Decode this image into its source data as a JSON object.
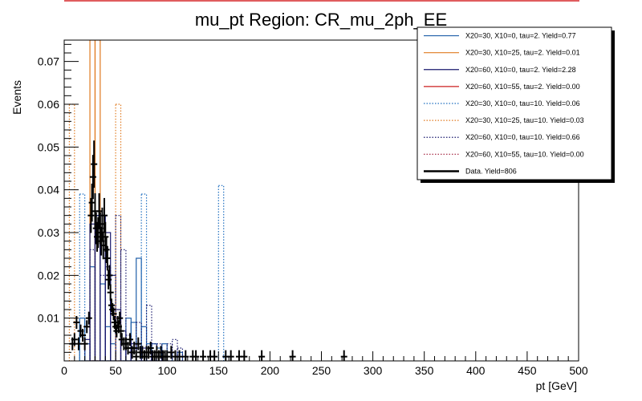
{
  "chart_data": {
    "type": "line",
    "title": "mu_pt Region: CR_mu_2ph_EE",
    "xlabel": "pt [GeV]",
    "ylabel": "Events",
    "xlim": [
      0,
      500
    ],
    "ylim": [
      0,
      0.075
    ],
    "x_ticks": [
      0,
      50,
      100,
      150,
      200,
      250,
      300,
      350,
      400,
      450,
      500
    ],
    "y_ticks": [
      0.01,
      0.02,
      0.03,
      0.04,
      0.05,
      0.06,
      0.07
    ],
    "x_tick_labels": [
      "0",
      "50",
      "100",
      "150",
      "200",
      "250",
      "300",
      "350",
      "400",
      "450",
      "500"
    ],
    "y_tick_labels": [
      "0.01",
      "0.02",
      "0.03",
      "0.04",
      "0.05",
      "0.06",
      "0.07"
    ],
    "bin_width": 5,
    "legend_position": "top-right",
    "series": [
      {
        "name": "X20=30, X10=0, tau=2. Yield=0.77",
        "color": "#1f5fa8",
        "dash": false,
        "bins": [
          [
            15,
            0.01
          ],
          [
            20,
            0.004
          ],
          [
            25,
            0.022
          ],
          [
            30,
            0.034
          ],
          [
            35,
            0.018
          ],
          [
            40,
            0.008
          ],
          [
            45,
            0.004
          ],
          [
            55,
            0.004
          ],
          [
            60,
            0.01
          ],
          [
            65,
            0.009
          ],
          [
            70,
            0.024
          ],
          [
            75,
            0.008
          ],
          [
            80,
            0.004
          ],
          [
            85,
            0.004
          ],
          [
            90,
            0.003
          ],
          [
            95,
            0.004
          ],
          [
            100,
            0.002
          ],
          [
            110,
            0.002
          ]
        ]
      },
      {
        "name": "X20=30, X10=25, tau=2. Yield=0.01",
        "color": "#e07b21",
        "dash": false,
        "bins": [
          [
            25,
            0.075
          ],
          [
            30,
            0.075
          ]
        ]
      },
      {
        "name": "X20=60, X10=0, tau=2. Yield=2.28",
        "color": "#1a1a6e",
        "dash": false,
        "bins": [
          [
            20,
            0.005
          ],
          [
            25,
            0.032
          ],
          [
            30,
            0.034
          ],
          [
            35,
            0.034
          ],
          [
            40,
            0.03
          ],
          [
            45,
            0.02
          ],
          [
            50,
            0.012
          ],
          [
            55,
            0.007
          ],
          [
            60,
            0.005
          ],
          [
            65,
            0.004
          ],
          [
            70,
            0.003
          ],
          [
            75,
            0.003
          ],
          [
            80,
            0.002
          ],
          [
            85,
            0.002
          ],
          [
            90,
            0.001
          ],
          [
            95,
            0.001
          ]
        ]
      },
      {
        "name": "X20=60, X10=55, tau=2. Yield=0.00",
        "color": "#cc1f1f",
        "dash": false,
        "bins": []
      },
      {
        "name": "X20=30, X10=0, tau=10. Yield=0.06",
        "color": "#1f6fc0",
        "dash": true,
        "bins": [
          [
            15,
            0.039
          ],
          [
            75,
            0.039
          ],
          [
            150,
            0.041
          ]
        ]
      },
      {
        "name": "X20=30, X10=25, tau=10. Yield=0.03",
        "color": "#e07b21",
        "dash": true,
        "bins": [
          [
            5,
            0.06
          ],
          [
            50,
            0.06
          ]
        ]
      },
      {
        "name": "X20=60, X10=0, tau=10. Yield=0.66",
        "color": "#1a1a6e",
        "dash": true,
        "bins": [
          [
            25,
            0.026
          ],
          [
            30,
            0.033
          ],
          [
            35,
            0.02
          ],
          [
            40,
            0.022
          ],
          [
            50,
            0.034
          ],
          [
            55,
            0.026
          ],
          [
            60,
            0.006
          ],
          [
            70,
            0.009
          ],
          [
            80,
            0.013
          ],
          [
            85,
            0.004
          ],
          [
            90,
            0.004
          ],
          [
            100,
            0.004
          ],
          [
            105,
            0.005
          ],
          [
            110,
            0.003
          ]
        ]
      },
      {
        "name": "X20=60, X10=55, tau=10. Yield=0.00",
        "color": "#a11d3a",
        "dash": true,
        "bins": []
      },
      {
        "name": "Data. Yield=806",
        "color": "#000000",
        "dash": false,
        "is_data": true,
        "points": [
          [
            8,
            0.004
          ],
          [
            10,
            0.005
          ],
          [
            12,
            0.009
          ],
          [
            14,
            0.004
          ],
          [
            16,
            0.007
          ],
          [
            18,
            0.006
          ],
          [
            20,
            0.004
          ],
          [
            22,
            0.008
          ],
          [
            24,
            0.01
          ],
          [
            26,
            0.034
          ],
          [
            27,
            0.037
          ],
          [
            28,
            0.043
          ],
          [
            29,
            0.046
          ],
          [
            30,
            0.035
          ],
          [
            31,
            0.031
          ],
          [
            32,
            0.029
          ],
          [
            33,
            0.03
          ],
          [
            34,
            0.035
          ],
          [
            35,
            0.031
          ],
          [
            36,
            0.028
          ],
          [
            37,
            0.032
          ],
          [
            38,
            0.027
          ],
          [
            39,
            0.034
          ],
          [
            40,
            0.029
          ],
          [
            41,
            0.026
          ],
          [
            42,
            0.024
          ],
          [
            43,
            0.019
          ],
          [
            44,
            0.02
          ],
          [
            45,
            0.016
          ],
          [
            46,
            0.013
          ],
          [
            47,
            0.012
          ],
          [
            48,
            0.011
          ],
          [
            49,
            0.009
          ],
          [
            50,
            0.008
          ],
          [
            51,
            0.007
          ],
          [
            52,
            0.009
          ],
          [
            53,
            0.008
          ],
          [
            54,
            0.01
          ],
          [
            55,
            0.007
          ],
          [
            56,
            0.005
          ],
          [
            58,
            0.004
          ],
          [
            60,
            0.004
          ],
          [
            62,
            0.003
          ],
          [
            64,
            0.005
          ],
          [
            66,
            0.002
          ],
          [
            68,
            0.003
          ],
          [
            70,
            0.001
          ],
          [
            72,
            0.004
          ],
          [
            74,
            0.002
          ],
          [
            76,
            0.002
          ],
          [
            78,
            0.001
          ],
          [
            80,
            0.002
          ],
          [
            82,
            0.002
          ],
          [
            84,
            0.003
          ],
          [
            86,
            0.001
          ],
          [
            88,
            0.001
          ],
          [
            90,
            0.002
          ],
          [
            92,
            0.001
          ],
          [
            94,
            0.002
          ],
          [
            96,
            0.001
          ],
          [
            98,
            0.001
          ],
          [
            100,
            0.001
          ],
          [
            104,
            0.002
          ],
          [
            108,
            0.001
          ],
          [
            112,
            0.001
          ],
          [
            118,
            0.001
          ],
          [
            125,
            0.001
          ],
          [
            128,
            0.001
          ],
          [
            135,
            0.001
          ],
          [
            142,
            0.001
          ],
          [
            146,
            0.001
          ],
          [
            157,
            0.001
          ],
          [
            162,
            0.001
          ],
          [
            170,
            0.001
          ],
          [
            175,
            0.001
          ],
          [
            192,
            0.001
          ],
          [
            222,
            0.001
          ],
          [
            272,
            0.001
          ]
        ]
      }
    ]
  }
}
